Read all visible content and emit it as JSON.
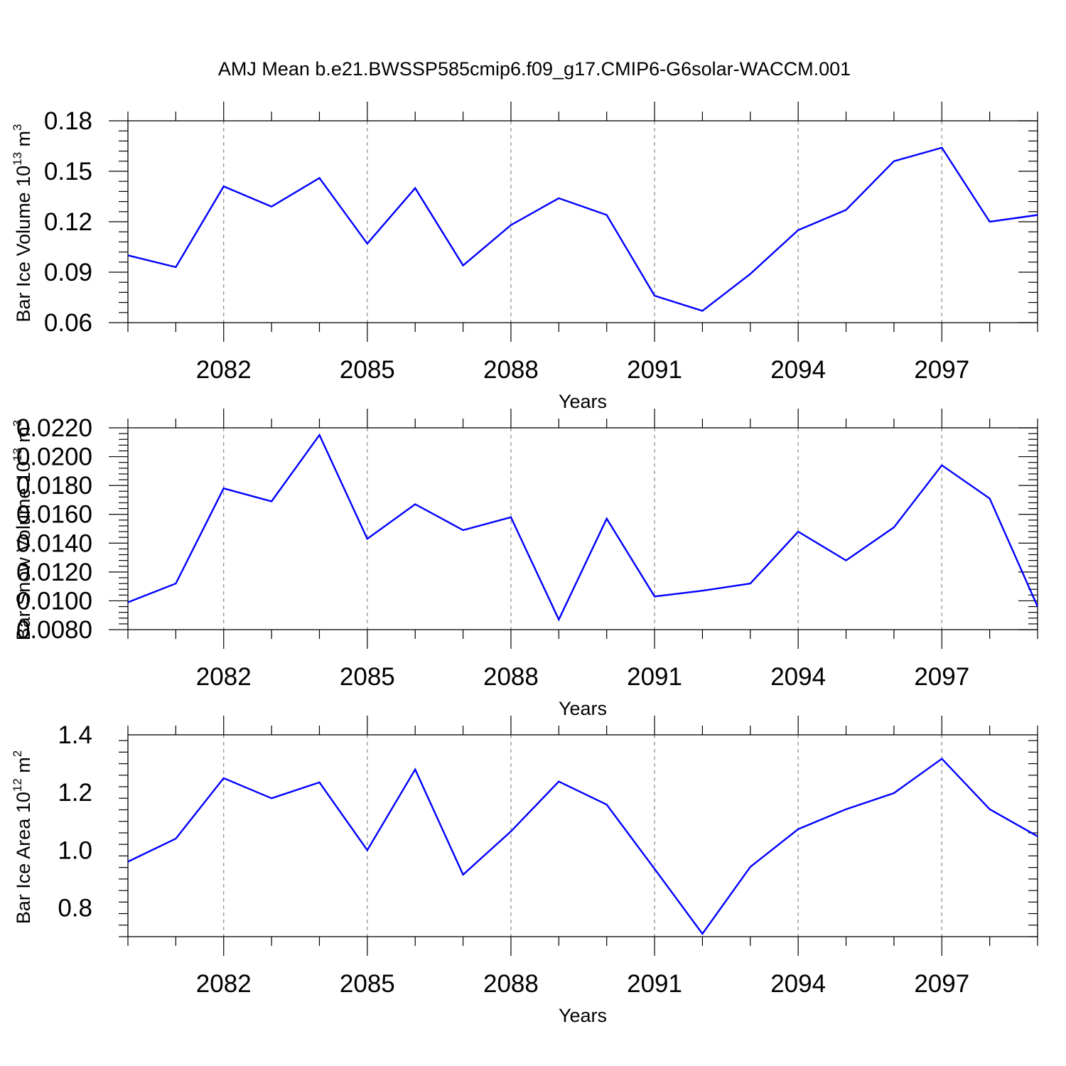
{
  "title": "AMJ Mean b.e21.BWSSP585cmip6.f09_g17.CMIP6-G6solar-WACCM.001",
  "colors": {
    "line": "#0000ff",
    "axes": "#000000",
    "grid": "#888888"
  },
  "chart_data": [
    {
      "type": "line",
      "ylabel": {
        "text": "Bar Ice Volume 10",
        "sup": "13",
        "unit": " m",
        "unit_sup": "3"
      },
      "xlabel": "Years",
      "xlim": [
        2080,
        2099
      ],
      "xticks": [
        "2082",
        "2085",
        "2088",
        "2091",
        "2094",
        "2097"
      ],
      "ylim": [
        0.06,
        0.18
      ],
      "yticks": [
        "0.06",
        "0.09",
        "0.12",
        "0.15",
        "0.18"
      ],
      "grid": "vertical dashed at major x ticks",
      "x": [
        2080,
        2081,
        2082,
        2083,
        2084,
        2085,
        2086,
        2087,
        2088,
        2089,
        2090,
        2091,
        2092,
        2093,
        2094,
        2095,
        2096,
        2097,
        2098,
        2099
      ],
      "series": [
        {
          "values": [
            0.1,
            0.093,
            0.141,
            0.129,
            0.146,
            0.107,
            0.14,
            0.094,
            0.118,
            0.134,
            0.124,
            0.076,
            0.067,
            0.089,
            0.115,
            0.127,
            0.156,
            0.164,
            0.12,
            0.124
          ]
        }
      ]
    },
    {
      "type": "line",
      "ylabel": {
        "text": "Bar Snow Volume 10",
        "sup": "13",
        "unit": " m",
        "unit_sup": "3"
      },
      "xlabel": "Years",
      "xlim": [
        2080,
        2099
      ],
      "xticks": [
        "2082",
        "2085",
        "2088",
        "2091",
        "2094",
        "2097"
      ],
      "ylim": [
        0.008,
        0.022
      ],
      "yticks": [
        "0.0080",
        "0.0100",
        "0.0120",
        "0.0140",
        "0.0160",
        "0.0180",
        "0.0200",
        "0.0220"
      ],
      "grid": "vertical dashed at major x ticks",
      "x": [
        2080,
        2081,
        2082,
        2083,
        2084,
        2085,
        2086,
        2087,
        2088,
        2089,
        2090,
        2091,
        2092,
        2093,
        2094,
        2095,
        2096,
        2097,
        2098,
        2099
      ],
      "series": [
        {
          "values": [
            0.0099,
            0.0112,
            0.0178,
            0.0169,
            0.0215,
            0.0143,
            0.0167,
            0.0149,
            0.0158,
            0.0087,
            0.0157,
            0.0103,
            0.0107,
            0.0112,
            0.0148,
            0.0128,
            0.0151,
            0.0194,
            0.0171,
            0.0096
          ]
        }
      ]
    },
    {
      "type": "line",
      "ylabel": {
        "text": "Bar Ice Area 10",
        "sup": "12",
        "unit": " m",
        "unit_sup": "2"
      },
      "xlabel": "Years",
      "xlim": [
        2080,
        2099
      ],
      "xticks": [
        "2082",
        "2085",
        "2088",
        "2091",
        "2094",
        "2097"
      ],
      "ylim": [
        0.7,
        1.4
      ],
      "yticks": [
        "0.8",
        "1.0",
        "1.2",
        "1.4"
      ],
      "grid": "vertical dashed at major x ticks",
      "x": [
        2080,
        2081,
        2082,
        2083,
        2084,
        2085,
        2086,
        2087,
        2088,
        2089,
        2090,
        2091,
        2092,
        2093,
        2094,
        2095,
        2096,
        2097,
        2098,
        2099
      ],
      "series": [
        {
          "values": [
            0.96,
            1.04,
            1.25,
            1.18,
            1.235,
            1.0,
            1.28,
            0.915,
            1.065,
            1.238,
            1.158,
            0.935,
            0.71,
            0.942,
            1.073,
            1.142,
            1.198,
            1.317,
            1.142,
            1.048
          ]
        }
      ]
    }
  ]
}
